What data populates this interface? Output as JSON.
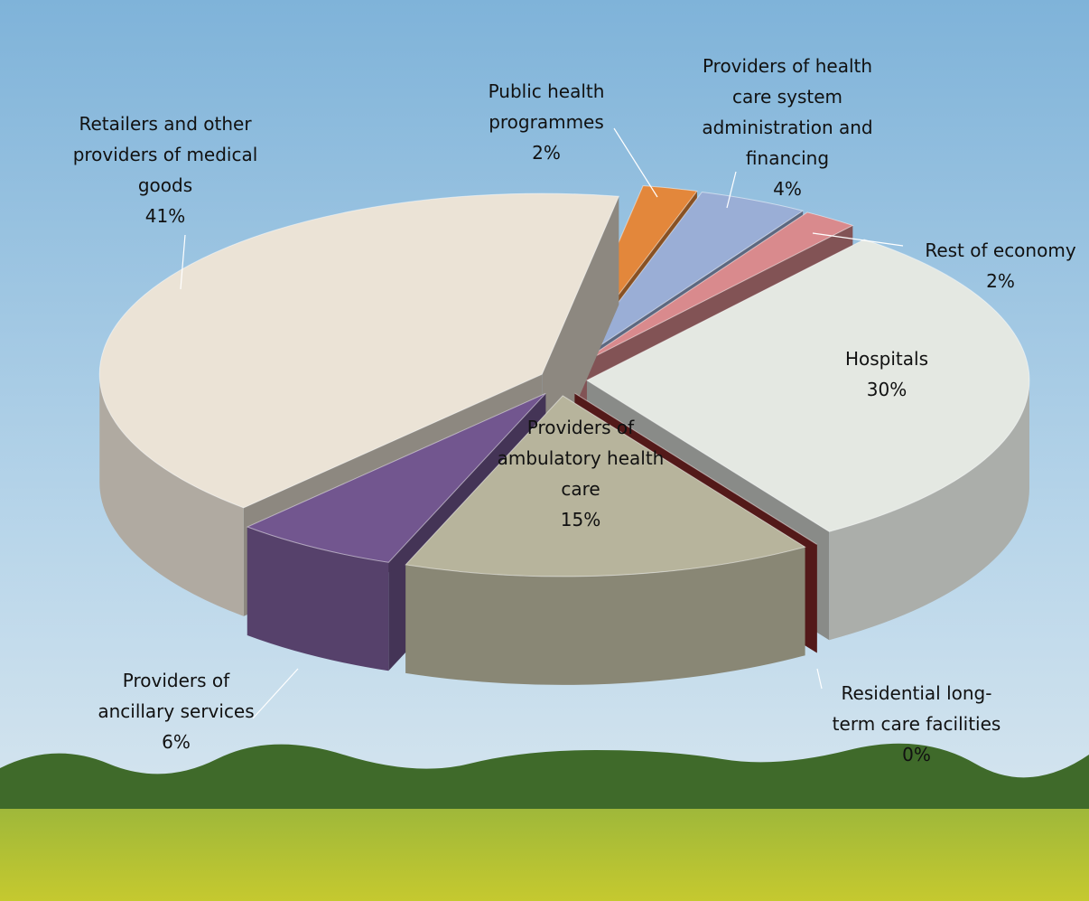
{
  "chart_data": {
    "type": "pie",
    "categories": [
      "Public health programmes",
      "Providers of health care system administration and financing",
      "Rest of economy",
      "Hospitals",
      "Residential long-term care facilities",
      "Providers of ambulatory health care",
      "Providers of ancillary services",
      "Retailers and other providers of medical goods"
    ],
    "values": [
      2,
      4,
      2,
      30,
      0,
      15,
      6,
      41
    ],
    "value_labels": [
      "2%",
      "4%",
      "2%",
      "30%",
      "0%",
      "15%",
      "6%",
      "41%"
    ],
    "colors": [
      "#e3873b",
      "#9aaed6",
      "#d98a8d",
      "#e4e8e2",
      "#8b2a2a",
      "#b7b49c",
      "#72568f",
      "#ebe3d6"
    ]
  }
}
